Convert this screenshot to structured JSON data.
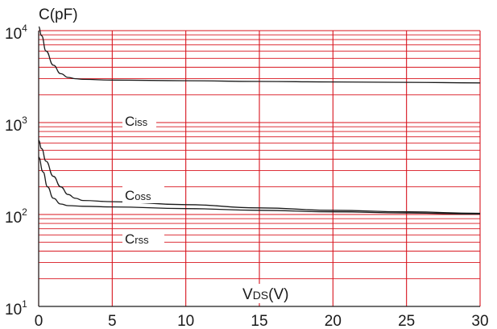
{
  "chart_data": {
    "type": "line",
    "title": "",
    "ylabel": "C(pF)",
    "xlabel": {
      "main": "V",
      "sub": "DS",
      "unit": "(V)"
    },
    "x_ticks": [
      "0",
      "5",
      "10",
      "15",
      "20",
      "25",
      "30"
    ],
    "y_ticks": [
      {
        "base": "10",
        "exp": "1"
      },
      {
        "base": "10",
        "exp": "2"
      },
      {
        "base": "10",
        "exp": "3"
      },
      {
        "base": "10",
        "exp": "4"
      }
    ],
    "xlim": [
      0,
      30
    ],
    "ylim": [
      10,
      10000
    ],
    "y_scale": "log",
    "grid": true,
    "grid_color": "#d8141e",
    "line_color": "#1a1a1a",
    "series": [
      {
        "name": "Ciss",
        "label": {
          "main": "C",
          "sub": "iss"
        },
        "x": [
          0,
          0.2,
          0.5,
          1,
          1.5,
          2,
          2.5,
          3,
          5,
          10,
          15,
          20,
          25,
          30
        ],
        "y": [
          11000,
          8800,
          6000,
          4200,
          3400,
          3100,
          3000,
          2950,
          2900,
          2850,
          2800,
          2770,
          2740,
          2700
        ]
      },
      {
        "name": "Coss",
        "label": {
          "main": "C",
          "sub": "oss"
        },
        "x": [
          0,
          0.2,
          0.5,
          1,
          1.5,
          2,
          2.5,
          3,
          5,
          10,
          15,
          20,
          25,
          30
        ],
        "y": [
          640,
          520,
          380,
          260,
          200,
          165,
          150,
          142,
          138,
          128,
          118,
          111,
          107,
          103
        ]
      },
      {
        "name": "Crss",
        "label": {
          "main": "C",
          "sub": "rss"
        },
        "x": [
          0,
          0.3,
          0.6,
          1,
          1.5,
          2,
          3,
          5,
          10,
          15,
          20,
          25,
          30
        ],
        "y": [
          420,
          290,
          200,
          150,
          130,
          125,
          123,
          121,
          116,
          111,
          107,
          104,
          101
        ]
      }
    ]
  }
}
